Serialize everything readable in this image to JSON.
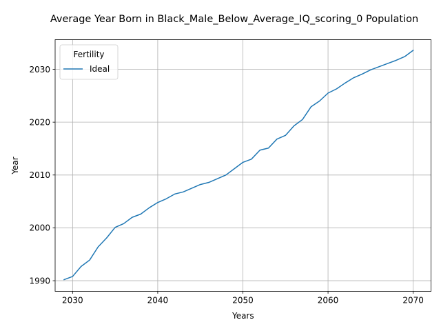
{
  "chart_data": {
    "type": "line",
    "title": "Average Year Born in Black_Male_Below_Average_IQ_scoring_0 Population",
    "xlabel": "Years",
    "ylabel": "Year",
    "xlim": [
      2027.95,
      2072.1
    ],
    "ylim": [
      1988.0,
      2035.6
    ],
    "xticks": [
      2030,
      2040,
      2050,
      2060,
      2070
    ],
    "yticks": [
      1990,
      2000,
      2010,
      2020,
      2030
    ],
    "grid": true,
    "legend": {
      "title": "Fertility",
      "position": "top-left"
    },
    "series": [
      {
        "name": "Ideal",
        "color": "#1f77b4",
        "x": [
          2029,
          2030,
          2031,
          2032,
          2033,
          2034,
          2035,
          2036,
          2037,
          2038,
          2039,
          2040,
          2041,
          2042,
          2043,
          2044,
          2045,
          2046,
          2047,
          2048,
          2049,
          2050,
          2051,
          2052,
          2053,
          2054,
          2055,
          2056,
          2057,
          2058,
          2059,
          2060,
          2061,
          2062,
          2063,
          2064,
          2065,
          2066,
          2067,
          2068,
          2069,
          2070
        ],
        "y": [
          1990.2,
          1990.8,
          1992.7,
          1993.9,
          1996.4,
          1998.1,
          2000.1,
          2000.8,
          2002.0,
          2002.6,
          2003.8,
          2004.8,
          2005.5,
          2006.4,
          2006.8,
          2007.5,
          2008.2,
          2008.6,
          2009.3,
          2010.0,
          2011.2,
          2012.4,
          2013.0,
          2014.7,
          2015.1,
          2016.8,
          2017.5,
          2019.3,
          2020.5,
          2022.9,
          2024.0,
          2025.5,
          2026.3,
          2027.4,
          2028.4,
          2029.1,
          2029.9,
          2030.5,
          2031.1,
          2031.7,
          2032.4,
          2033.6
        ]
      }
    ]
  }
}
